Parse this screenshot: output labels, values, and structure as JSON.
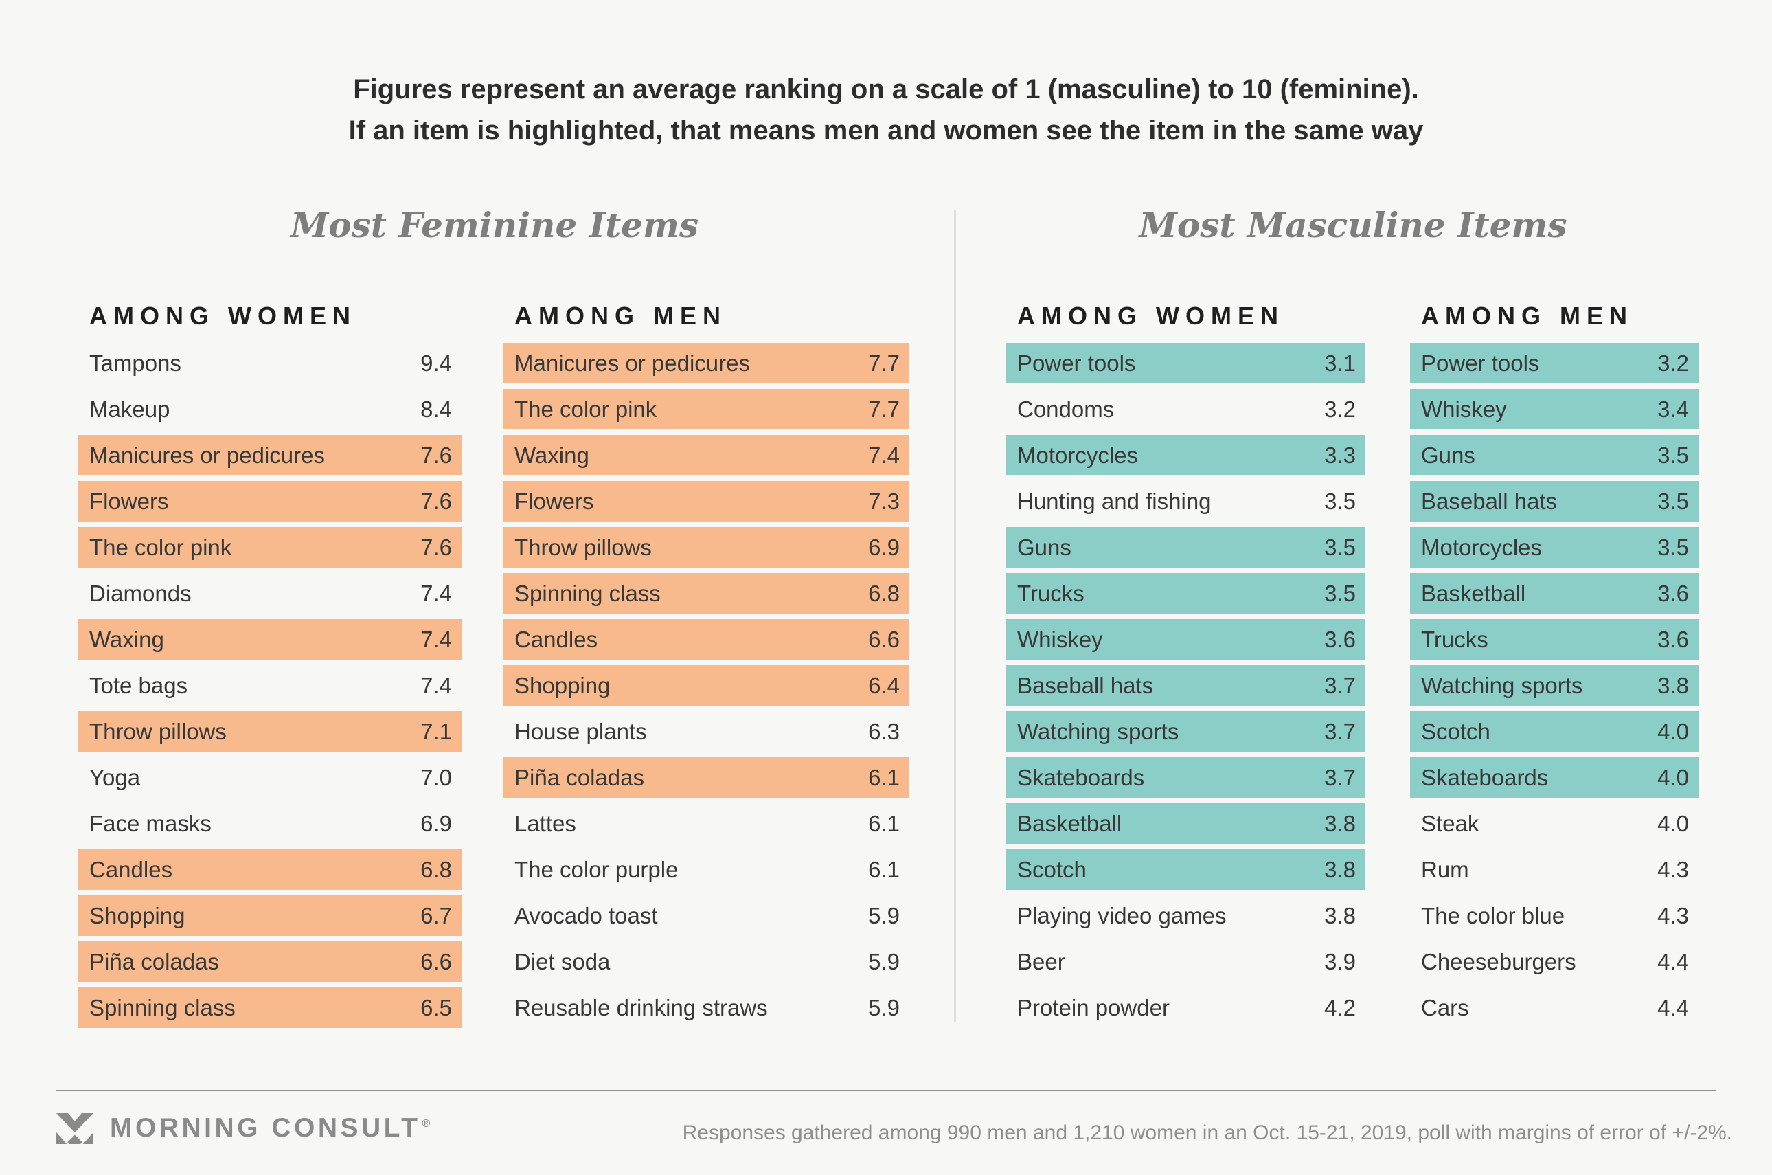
{
  "header": {
    "line1": "Figures represent an average ranking on a scale of 1 (masculine) to 10 (feminine).",
    "line2": "If an item is highlighted, that means men and women see the item in the same way"
  },
  "colors": {
    "background": "#f7f7f5",
    "feminine_highlight": "#f8ba8c",
    "masculine_highlight": "#8bcec8",
    "text_dark": "#383838",
    "gray_footer": "#8f8f8f"
  },
  "chart_data": {
    "type": "table",
    "scale": [
      1,
      10
    ],
    "scale_low_label": "masculine",
    "scale_high_label": "feminine",
    "highlight_meaning": "men and women see the item in the same way",
    "groups": [
      {
        "title": "Most Feminine Items",
        "highlight_color": "#f8ba8c",
        "columns": [
          {
            "heading": "AMONG WOMEN",
            "rows": [
              {
                "label": "Tampons",
                "value": "9.4",
                "highlighted": false
              },
              {
                "label": "Makeup",
                "value": "8.4",
                "highlighted": false
              },
              {
                "label": "Manicures or pedicures",
                "value": "7.6",
                "highlighted": true
              },
              {
                "label": "Flowers",
                "value": "7.6",
                "highlighted": true
              },
              {
                "label": "The color pink",
                "value": "7.6",
                "highlighted": true
              },
              {
                "label": "Diamonds",
                "value": "7.4",
                "highlighted": false
              },
              {
                "label": "Waxing",
                "value": "7.4",
                "highlighted": true
              },
              {
                "label": "Tote bags",
                "value": "7.4",
                "highlighted": false
              },
              {
                "label": "Throw pillows",
                "value": "7.1",
                "highlighted": true
              },
              {
                "label": "Yoga",
                "value": "7.0",
                "highlighted": false
              },
              {
                "label": "Face masks",
                "value": "6.9",
                "highlighted": false
              },
              {
                "label": "Candles",
                "value": "6.8",
                "highlighted": true
              },
              {
                "label": "Shopping",
                "value": "6.7",
                "highlighted": true
              },
              {
                "label": "Piña coladas",
                "value": "6.6",
                "highlighted": true
              },
              {
                "label": "Spinning class",
                "value": "6.5",
                "highlighted": true
              }
            ]
          },
          {
            "heading": "AMONG MEN",
            "rows": [
              {
                "label": "Manicures or pedicures",
                "value": "7.7",
                "highlighted": true
              },
              {
                "label": "The color pink",
                "value": "7.7",
                "highlighted": true
              },
              {
                "label": "Waxing",
                "value": "7.4",
                "highlighted": true
              },
              {
                "label": "Flowers",
                "value": "7.3",
                "highlighted": true
              },
              {
                "label": "Throw pillows",
                "value": "6.9",
                "highlighted": true
              },
              {
                "label": "Spinning class",
                "value": "6.8",
                "highlighted": true
              },
              {
                "label": "Candles",
                "value": "6.6",
                "highlighted": true
              },
              {
                "label": "Shopping",
                "value": "6.4",
                "highlighted": true
              },
              {
                "label": "House plants",
                "value": "6.3",
                "highlighted": false
              },
              {
                "label": "Piña coladas",
                "value": "6.1",
                "highlighted": true
              },
              {
                "label": "Lattes",
                "value": "6.1",
                "highlighted": false
              },
              {
                "label": "The color purple",
                "value": "6.1",
                "highlighted": false
              },
              {
                "label": "Avocado toast",
                "value": "5.9",
                "highlighted": false
              },
              {
                "label": "Diet soda",
                "value": "5.9",
                "highlighted": false
              },
              {
                "label": "Reusable drinking straws",
                "value": "5.9",
                "highlighted": false
              }
            ]
          }
        ]
      },
      {
        "title": "Most Masculine Items",
        "highlight_color": "#8bcec8",
        "columns": [
          {
            "heading": "AMONG WOMEN",
            "rows": [
              {
                "label": "Power tools",
                "value": "3.1",
                "highlighted": true
              },
              {
                "label": "Condoms",
                "value": "3.2",
                "highlighted": false
              },
              {
                "label": "Motorcycles",
                "value": "3.3",
                "highlighted": true
              },
              {
                "label": "Hunting and fishing",
                "value": "3.5",
                "highlighted": false
              },
              {
                "label": "Guns",
                "value": "3.5",
                "highlighted": true
              },
              {
                "label": "Trucks",
                "value": "3.5",
                "highlighted": true
              },
              {
                "label": "Whiskey",
                "value": "3.6",
                "highlighted": true
              },
              {
                "label": "Baseball hats",
                "value": "3.7",
                "highlighted": true
              },
              {
                "label": "Watching sports",
                "value": "3.7",
                "highlighted": true
              },
              {
                "label": "Skateboards",
                "value": "3.7",
                "highlighted": true
              },
              {
                "label": "Basketball",
                "value": "3.8",
                "highlighted": true
              },
              {
                "label": "Scotch",
                "value": "3.8",
                "highlighted": true
              },
              {
                "label": "Playing video games",
                "value": "3.8",
                "highlighted": false
              },
              {
                "label": "Beer",
                "value": "3.9",
                "highlighted": false
              },
              {
                "label": "Protein powder",
                "value": "4.2",
                "highlighted": false
              }
            ]
          },
          {
            "heading": "AMONG MEN",
            "rows": [
              {
                "label": "Power tools",
                "value": "3.2",
                "highlighted": true
              },
              {
                "label": "Whiskey",
                "value": "3.4",
                "highlighted": true
              },
              {
                "label": "Guns",
                "value": "3.5",
                "highlighted": true
              },
              {
                "label": "Baseball hats",
                "value": "3.5",
                "highlighted": true
              },
              {
                "label": "Motorcycles",
                "value": "3.5",
                "highlighted": true
              },
              {
                "label": "Basketball",
                "value": "3.6",
                "highlighted": true
              },
              {
                "label": "Trucks",
                "value": "3.6",
                "highlighted": true
              },
              {
                "label": "Watching sports",
                "value": "3.8",
                "highlighted": true
              },
              {
                "label": "Scotch",
                "value": "4.0",
                "highlighted": true
              },
              {
                "label": "Skateboards",
                "value": "4.0",
                "highlighted": true
              },
              {
                "label": "Steak",
                "value": "4.0",
                "highlighted": false
              },
              {
                "label": "Rum",
                "value": "4.3",
                "highlighted": false
              },
              {
                "label": "The color blue",
                "value": "4.3",
                "highlighted": false
              },
              {
                "label": "Cheeseburgers",
                "value": "4.4",
                "highlighted": false
              },
              {
                "label": "Cars",
                "value": "4.4",
                "highlighted": false
              }
            ]
          }
        ]
      }
    ]
  },
  "footer": {
    "logo_text": "MORNING CONSULT",
    "registered_mark": "®",
    "note": "Responses gathered among 990 men and 1,210 women in an Oct. 15-21, 2019, poll with margins of error of +/-2%."
  }
}
